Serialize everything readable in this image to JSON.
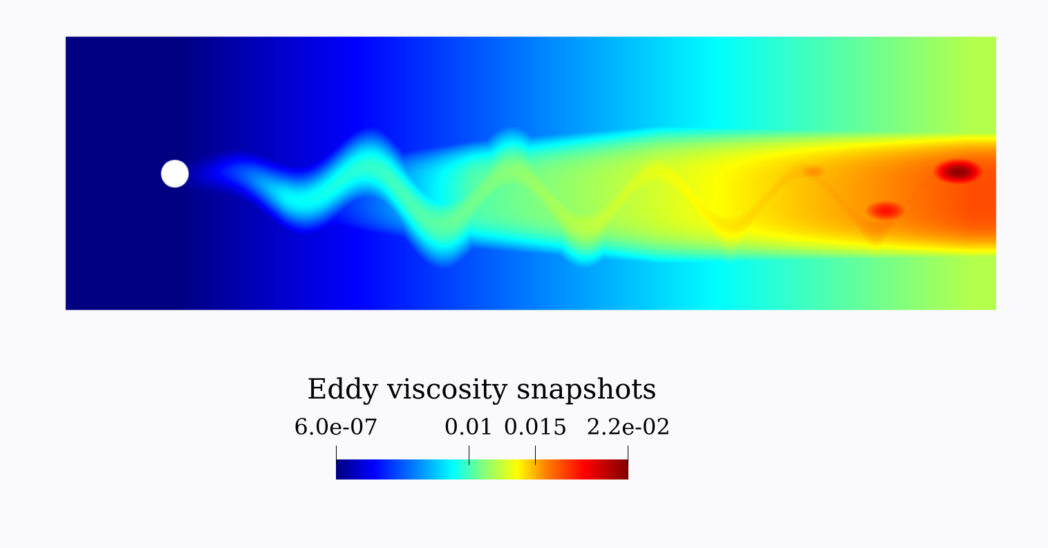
{
  "figure": {
    "colormap": "jet",
    "background_color": "#fafafd",
    "domain_color": "#00007f",
    "obstacle": "cylinder",
    "obstacle_color": "#ffffff",
    "min_value": 6e-07,
    "max_value": 0.022
  },
  "legend": {
    "title": "Eddy viscosity snapshots",
    "ticks": [
      {
        "label": "6.0e-07",
        "value": 6e-07
      },
      {
        "label": "0.01",
        "value": 0.01
      },
      {
        "label": "0.015",
        "value": 0.015
      },
      {
        "label": "2.2e-02",
        "value": 0.022
      }
    ]
  }
}
